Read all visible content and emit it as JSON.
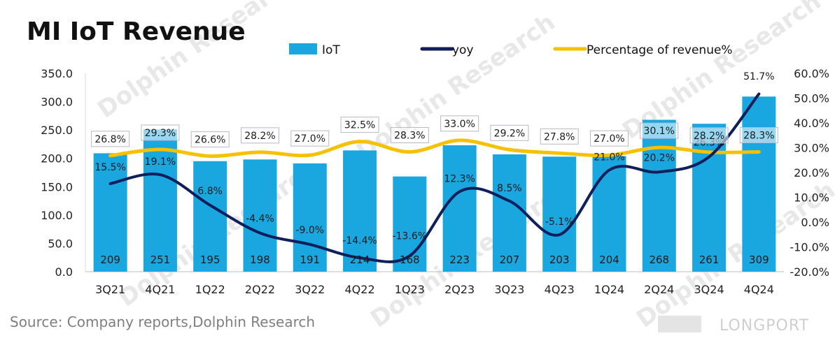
{
  "chart_data": {
    "type": "bar",
    "title": "MI IoT Revenue",
    "categories": [
      "3Q21",
      "4Q21",
      "1Q22",
      "2Q22",
      "3Q22",
      "4Q22",
      "1Q23",
      "2Q23",
      "3Q23",
      "4Q23",
      "1Q24",
      "2Q24",
      "3Q24",
      "4Q24"
    ],
    "series": [
      {
        "name": "IoT",
        "kind": "bar",
        "axis": "left",
        "color": "#1aa7e0",
        "values": [
          209,
          251,
          195,
          198,
          191,
          214,
          168,
          223,
          207,
          203,
          204,
          268,
          261,
          309
        ],
        "labels": [
          "209",
          "251",
          "195",
          "198",
          "191",
          "214",
          "168",
          "223",
          "207",
          "203",
          "204",
          "268",
          "261",
          "309"
        ]
      },
      {
        "name": "yoy",
        "kind": "line",
        "axis": "right",
        "color": "#0e1f5b",
        "values": [
          15.5,
          19.1,
          6.8,
          -4.4,
          -9.0,
          -14.4,
          -13.6,
          12.3,
          8.5,
          -5.1,
          21.0,
          20.2,
          26.3,
          51.7
        ],
        "labels": [
          "15.5%",
          "19.1%",
          "6.8%",
          "-4.4%",
          "-9.0%",
          "-14.4%",
          "-13.6%",
          "12.3%",
          "8.5%",
          "-5.1%",
          "21.0%",
          "20.2%",
          "26.3%",
          "51.7%"
        ]
      },
      {
        "name": "Percentage of revenue%",
        "kind": "line",
        "axis": "right",
        "color": "#f5c100",
        "values": [
          26.8,
          29.3,
          26.6,
          28.2,
          27.0,
          32.5,
          28.3,
          33.0,
          29.2,
          27.8,
          27.0,
          30.1,
          28.2,
          28.3
        ],
        "labels": [
          "26.8%",
          "29.3%",
          "26.6%",
          "28.2%",
          "27.0%",
          "32.5%",
          "28.3%",
          "33.0%",
          "29.2%",
          "27.8%",
          "27.0%",
          "30.1%",
          "28.2%",
          "28.3%"
        ]
      }
    ],
    "ylim_left": [
      0,
      350
    ],
    "yticks_left": [
      "0.0",
      "50.0",
      "100.0",
      "150.0",
      "200.0",
      "250.0",
      "300.0",
      "350.0"
    ],
    "ylim_right": [
      -20,
      60
    ],
    "yticks_right": [
      "-20.0%",
      "-10.0%",
      "0.0%",
      "10.0%",
      "20.0%",
      "30.0%",
      "40.0%",
      "50.0%",
      "60.0%"
    ],
    "legend": [
      "IoT",
      "yoy",
      "Percentage of revenue%"
    ],
    "legend_position": "top",
    "grid": false
  },
  "source": "Source: Company reports,Dolphin Research",
  "watermark": {
    "brand": "LONGPORT"
  }
}
